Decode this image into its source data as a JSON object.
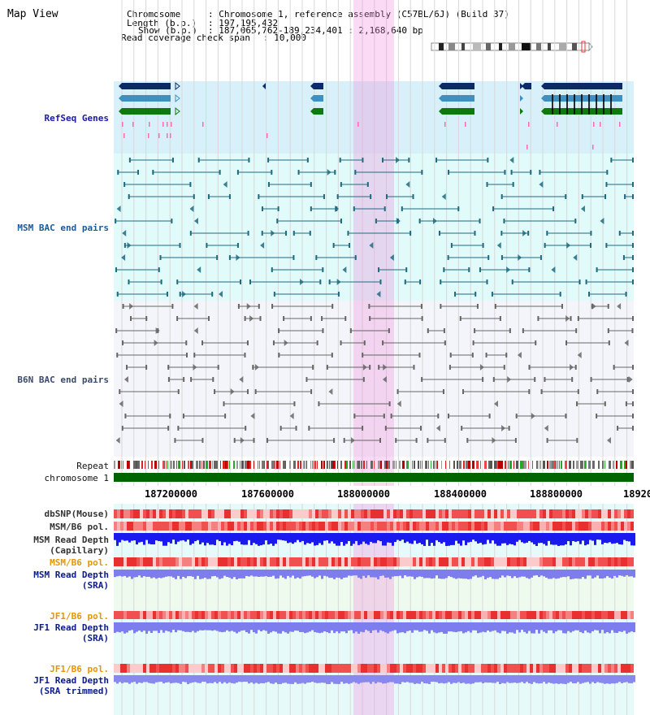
{
  "page": {
    "title": "Map View"
  },
  "info": {
    "chromosome_label": "Chromosome",
    "chromosome_value": "Chromosome 1, reference assembly (C57BL/6J) (Build 37)",
    "length_label": "Length (b.p.)",
    "length_value": "197,195,432",
    "show_label": "Show (b.p.)",
    "show_value": "187,065,762-189,234,401 : 2,168,640 bp",
    "coverage_label": "Read coverage check span",
    "coverage_value": "10,000"
  },
  "tracks": {
    "refseq": "RefSeq Genes",
    "msm_bac": "MSM BAC end pairs",
    "b6n_bac": "B6N BAC end pairs",
    "repeat": "Repeat",
    "chromosome": "chromosome 1",
    "dbsnp": "dbSNP(Mouse)",
    "msm_b6_pol_1": "MSM/B6 pol.",
    "msm_depth_cap_1": "MSM Read Depth",
    "msm_depth_cap_2": "(Capillary)",
    "msm_b6_pol_2": "MSM/B6 pol.",
    "msm_depth_sra_1": "MSM Read Depth",
    "msm_depth_sra_2": "(SRA)",
    "jf1_b6_pol_1": "JF1/B6 pol.",
    "jf1_depth_sra_1": "JF1 Read Depth",
    "jf1_depth_sra_2": "(SRA)",
    "jf1_b6_pol_2": "JF1/B6 pol.",
    "jf1_depth_tr_1": "JF1 Read Depth",
    "jf1_depth_tr_2": "(SRA trimmed)"
  },
  "axis": {
    "ticks": [
      "187200000",
      "187600000",
      "188000000",
      "188400000",
      "188800000",
      "18920"
    ]
  },
  "colors": {
    "refseq_bg": "#d8f0fa",
    "msm_bg": "#e1fafa",
    "b6n_bg": "#f4f5fa",
    "highlight": "#f6d8f0",
    "gene_navy": "#0b2a66",
    "gene_steel": "#3f8fbf",
    "gene_green": "#0e7a0e",
    "msm_line": "#1f6b80",
    "b6n_line": "#666666",
    "chromosome_bar": "#006400",
    "depth_blue": "#1a1aee",
    "depth_lavender": "#7d7dee"
  }
}
